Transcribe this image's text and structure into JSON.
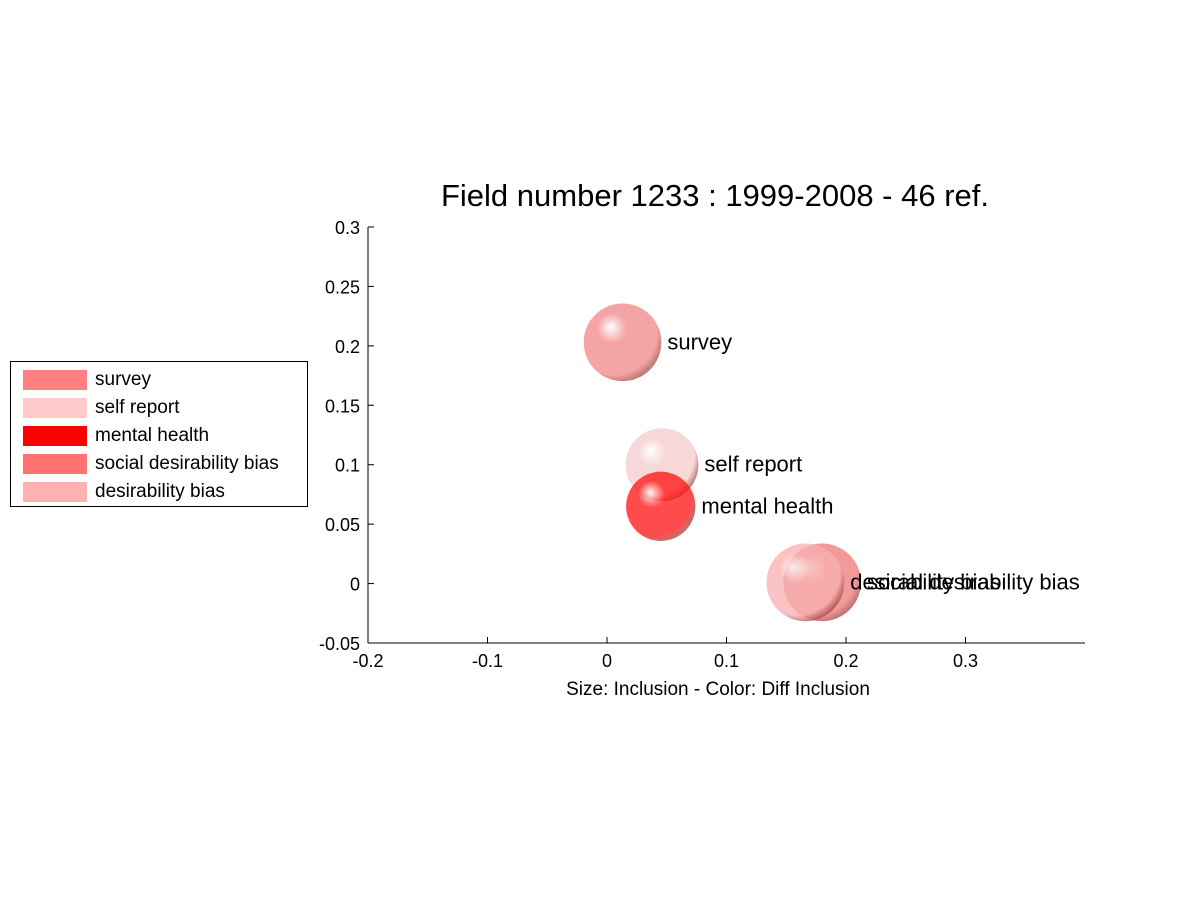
{
  "chart_data": {
    "type": "scatter",
    "title": "Field number 1233 : 1999-2008  - 46 ref.",
    "xlabel": "Size: Inclusion - Color: Diff Inclusion",
    "ylabel": "",
    "xlim": [
      -0.2,
      0.4
    ],
    "ylim": [
      -0.05,
      0.3
    ],
    "xticks": [
      "-0.2",
      "-0.1",
      "0",
      "0.1",
      "0.2",
      "0.3"
    ],
    "xtick_values": [
      -0.2,
      -0.1,
      0,
      0.1,
      0.2,
      0.3
    ],
    "yticks": [
      "-0.05",
      "0",
      "0.05",
      "0.1",
      "0.15",
      "0.2",
      "0.25",
      "0.3"
    ],
    "ytick_values": [
      -0.05,
      0,
      0.05,
      0.1,
      0.15,
      0.2,
      0.25,
      0.3
    ],
    "grid": false,
    "legend_position": "left",
    "points": [
      {
        "name": "survey",
        "x": 0.013,
        "y": 0.203,
        "size": 0.065,
        "color": "#f08888"
      },
      {
        "name": "self report",
        "x": 0.046,
        "y": 0.1,
        "size": 0.061,
        "color": "#f5cccc"
      },
      {
        "name": "mental health",
        "x": 0.045,
        "y": 0.065,
        "size": 0.058,
        "color": "#ff1414"
      },
      {
        "name": "social desirability bias",
        "x": 0.18,
        "y": 0.001,
        "size": 0.065,
        "color": "#ee7b7b"
      },
      {
        "name": "desirability bias",
        "x": 0.166,
        "y": 0.001,
        "size": 0.065,
        "color": "#f8b0b0"
      }
    ]
  },
  "legend": {
    "items": [
      {
        "label": "survey",
        "color": "#ff8080"
      },
      {
        "label": "self report",
        "color": "#ffcccc"
      },
      {
        "label": "mental health",
        "color": "#ff0000"
      },
      {
        "label": "social desirability bias",
        "color": "#ff7070"
      },
      {
        "label": "desirability bias",
        "color": "#ffb0b0"
      }
    ]
  }
}
